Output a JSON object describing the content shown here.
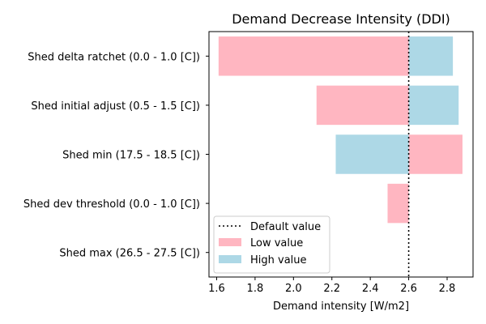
{
  "chart_data": {
    "type": "bar",
    "orientation": "horizontal",
    "title": "Demand Decrease Intensity (DDI)",
    "xlabel": "Demand intensity [W/m2]",
    "ylabel": "",
    "xlim": [
      1.56,
      2.935
    ],
    "x_ticks": [
      "1.6",
      "1.8",
      "2.0",
      "2.2",
      "2.4",
      "2.6",
      "2.8"
    ],
    "x_tick_values": [
      1.6,
      1.8,
      2.0,
      2.2,
      2.4,
      2.6,
      2.8
    ],
    "baseline": 2.6,
    "grid": false,
    "legend_position": "lower-left",
    "categories": [
      "Shed delta ratchet (0.0 - 1.0 [C])",
      "Shed initial adjust (0.5 - 1.5 [C])",
      "Shed min (17.5 - 18.5 [C])",
      "Shed dev threshold (0.0 - 1.0 [C])",
      "Shed max (26.5 - 27.5 [C])"
    ],
    "series": [
      {
        "name": "Low value",
        "values": [
          1.61,
          2.12,
          2.88,
          2.49,
          2.6
        ],
        "color": "#ffb6c1"
      },
      {
        "name": "High value",
        "values": [
          2.83,
          2.86,
          2.22,
          2.6,
          2.6
        ],
        "color": "#add8e6"
      }
    ],
    "reference_line": {
      "name": "Default value",
      "value": 2.6,
      "style": "dotted",
      "color": "#000000"
    }
  }
}
